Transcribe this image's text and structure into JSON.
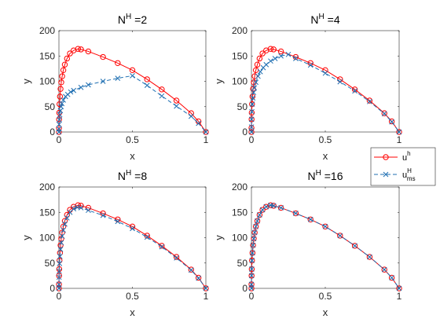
{
  "chart_data": [
    {
      "type": "line",
      "title": {
        "base": "N",
        "sup": "H",
        "rest": " =2"
      },
      "xlabel": "x",
      "ylabel": "y",
      "xlim": [
        0,
        1
      ],
      "ylim": [
        0,
        200
      ],
      "xticks": [
        0,
        0.5,
        1
      ],
      "xtick_labels": [
        "0",
        "0.5",
        "1"
      ],
      "yticks": [
        0,
        50,
        100,
        150,
        200
      ],
      "ytick_labels": [
        "0",
        "50",
        "100",
        "150",
        "200"
      ],
      "grid": false,
      "series": [
        {
          "name": "u^h",
          "role": "fine",
          "color": "#ff0000",
          "marker": "circle",
          "x": [
            0,
            0.0003,
            0.001,
            0.002,
            0.004,
            0.007,
            0.011,
            0.016,
            0.022,
            0.03,
            0.04,
            0.055,
            0.075,
            0.1,
            0.13,
            0.15,
            0.2,
            0.3,
            0.4,
            0.5,
            0.6,
            0.7,
            0.8,
            0.9,
            0.95,
            1.0
          ],
          "y": [
            0,
            8,
            25,
            38,
            55,
            70,
            85,
            98,
            110,
            122,
            133,
            145,
            155,
            161,
            164,
            163,
            159,
            148,
            136,
            122,
            104,
            84,
            62,
            37,
            21,
            0
          ]
        },
        {
          "name": "u_ms^H",
          "role": "multiscale",
          "color": "#1f6fb2",
          "marker": "x",
          "x": [
            0,
            0.0003,
            0.001,
            0.003,
            0.006,
            0.01,
            0.015,
            0.02,
            0.03,
            0.045,
            0.06,
            0.08,
            0.1,
            0.15,
            0.2,
            0.3,
            0.4,
            0.5,
            0.6,
            0.7,
            0.8,
            0.9,
            0.95,
            1.0
          ],
          "y": [
            0,
            6,
            15,
            24,
            34,
            42,
            50,
            56,
            63,
            70,
            74,
            79,
            82,
            88,
            93,
            100,
            106,
            111,
            92,
            71,
            51,
            31,
            17,
            0
          ]
        }
      ]
    },
    {
      "type": "line",
      "title": {
        "base": "N",
        "sup": "H",
        "rest": " =4"
      },
      "xlabel": "x",
      "ylabel": "y",
      "xlim": [
        0,
        1
      ],
      "ylim": [
        0,
        200
      ],
      "xticks": [
        0,
        0.5,
        1
      ],
      "xtick_labels": [
        "0",
        "0.5",
        "1"
      ],
      "yticks": [
        0,
        50,
        100,
        150,
        200
      ],
      "ytick_labels": [
        "0",
        "50",
        "100",
        "150",
        "200"
      ],
      "grid": false,
      "series": [
        {
          "name": "u^h",
          "role": "fine",
          "color": "#ff0000",
          "marker": "circle",
          "x": [
            0,
            0.0003,
            0.001,
            0.002,
            0.004,
            0.007,
            0.011,
            0.016,
            0.022,
            0.03,
            0.04,
            0.055,
            0.075,
            0.1,
            0.13,
            0.15,
            0.2,
            0.3,
            0.4,
            0.5,
            0.6,
            0.7,
            0.8,
            0.9,
            0.95,
            1.0
          ],
          "y": [
            0,
            8,
            25,
            38,
            55,
            70,
            85,
            98,
            110,
            122,
            133,
            145,
            155,
            161,
            164,
            163,
            159,
            148,
            136,
            122,
            104,
            84,
            62,
            37,
            21,
            0
          ]
        },
        {
          "name": "u_ms^H",
          "role": "multiscale",
          "color": "#1f6fb2",
          "marker": "x",
          "x": [
            0,
            0.0003,
            0.001,
            0.003,
            0.006,
            0.01,
            0.015,
            0.02,
            0.03,
            0.045,
            0.06,
            0.08,
            0.1,
            0.13,
            0.16,
            0.2,
            0.25,
            0.3,
            0.4,
            0.5,
            0.6,
            0.7,
            0.8,
            0.9,
            0.95,
            1.0
          ],
          "y": [
            0,
            10,
            25,
            40,
            55,
            67,
            78,
            87,
            98,
            110,
            119,
            127,
            133,
            140,
            145,
            150,
            153,
            145,
            132,
            116,
            99,
            81,
            60,
            36,
            20,
            0
          ]
        }
      ]
    },
    {
      "type": "line",
      "title": {
        "base": "N",
        "sup": "H",
        "rest": " =8"
      },
      "xlabel": "x",
      "ylabel": "y",
      "xlim": [
        0,
        1
      ],
      "ylim": [
        0,
        200
      ],
      "xticks": [
        0,
        0.5,
        1
      ],
      "xtick_labels": [
        "0",
        "0.5",
        "1"
      ],
      "yticks": [
        0,
        50,
        100,
        150,
        200
      ],
      "ytick_labels": [
        "0",
        "50",
        "100",
        "150",
        "200"
      ],
      "grid": false,
      "series": [
        {
          "name": "u^h",
          "role": "fine",
          "color": "#ff0000",
          "marker": "circle",
          "x": [
            0,
            0.0003,
            0.001,
            0.002,
            0.004,
            0.007,
            0.011,
            0.016,
            0.022,
            0.03,
            0.04,
            0.055,
            0.075,
            0.1,
            0.13,
            0.15,
            0.2,
            0.3,
            0.4,
            0.5,
            0.6,
            0.7,
            0.8,
            0.9,
            0.95,
            1.0
          ],
          "y": [
            0,
            8,
            25,
            38,
            55,
            70,
            85,
            98,
            110,
            122,
            133,
            145,
            155,
            161,
            164,
            163,
            159,
            148,
            136,
            122,
            104,
            84,
            62,
            37,
            21,
            0
          ]
        },
        {
          "name": "u_ms^H",
          "role": "multiscale",
          "color": "#1f6fb2",
          "marker": "x",
          "x": [
            0,
            0.0003,
            0.001,
            0.002,
            0.004,
            0.007,
            0.011,
            0.016,
            0.022,
            0.03,
            0.04,
            0.055,
            0.075,
            0.1,
            0.125,
            0.15,
            0.2,
            0.3,
            0.4,
            0.5,
            0.6,
            0.7,
            0.8,
            0.9,
            0.95,
            1.0
          ],
          "y": [
            0,
            8,
            22,
            34,
            49,
            63,
            77,
            90,
            103,
            115,
            127,
            139,
            150,
            157,
            160,
            159,
            154,
            144,
            132,
            118,
            101,
            82,
            60,
            36,
            20,
            0
          ]
        }
      ]
    },
    {
      "type": "line",
      "title": {
        "base": "N",
        "sup": "H",
        "rest": " =16"
      },
      "xlabel": "x",
      "ylabel": "y",
      "xlim": [
        0,
        1
      ],
      "ylim": [
        0,
        200
      ],
      "xticks": [
        0,
        0.5,
        1
      ],
      "xtick_labels": [
        "0",
        "0.5",
        "1"
      ],
      "yticks": [
        0,
        50,
        100,
        150,
        200
      ],
      "ytick_labels": [
        "0",
        "50",
        "100",
        "150",
        "200"
      ],
      "grid": false,
      "series": [
        {
          "name": "u^h",
          "role": "fine",
          "color": "#ff0000",
          "marker": "circle",
          "x": [
            0,
            0.0003,
            0.001,
            0.002,
            0.004,
            0.007,
            0.011,
            0.016,
            0.022,
            0.03,
            0.04,
            0.055,
            0.075,
            0.1,
            0.13,
            0.15,
            0.2,
            0.3,
            0.4,
            0.5,
            0.6,
            0.7,
            0.8,
            0.9,
            0.95,
            1.0
          ],
          "y": [
            0,
            8,
            25,
            38,
            55,
            70,
            85,
            98,
            110,
            122,
            133,
            145,
            155,
            161,
            164,
            163,
            159,
            148,
            136,
            122,
            104,
            84,
            62,
            37,
            21,
            0
          ]
        },
        {
          "name": "u_ms^H",
          "role": "multiscale",
          "color": "#1f6fb2",
          "marker": "x",
          "x": [
            0,
            0.0003,
            0.001,
            0.002,
            0.004,
            0.007,
            0.011,
            0.016,
            0.022,
            0.03,
            0.04,
            0.055,
            0.075,
            0.1,
            0.13,
            0.15,
            0.2,
            0.3,
            0.4,
            0.5,
            0.6,
            0.7,
            0.8,
            0.9,
            0.95,
            1.0
          ],
          "y": [
            0,
            8,
            25,
            38,
            55,
            70,
            85,
            98,
            110,
            122,
            133,
            145,
            155,
            161,
            164,
            163,
            159,
            148,
            136,
            122,
            104,
            84,
            62,
            37,
            21,
            0
          ]
        }
      ]
    }
  ],
  "legend": {
    "placement": "right",
    "entries": [
      {
        "base": "u",
        "sup": "h",
        "sub": "",
        "color": "#ff0000",
        "marker": "circle",
        "linestyle": "solid"
      },
      {
        "base": "u",
        "sup": "H",
        "sub": "ms",
        "color": "#1f6fb2",
        "marker": "x",
        "linestyle": "dashed"
      }
    ]
  }
}
